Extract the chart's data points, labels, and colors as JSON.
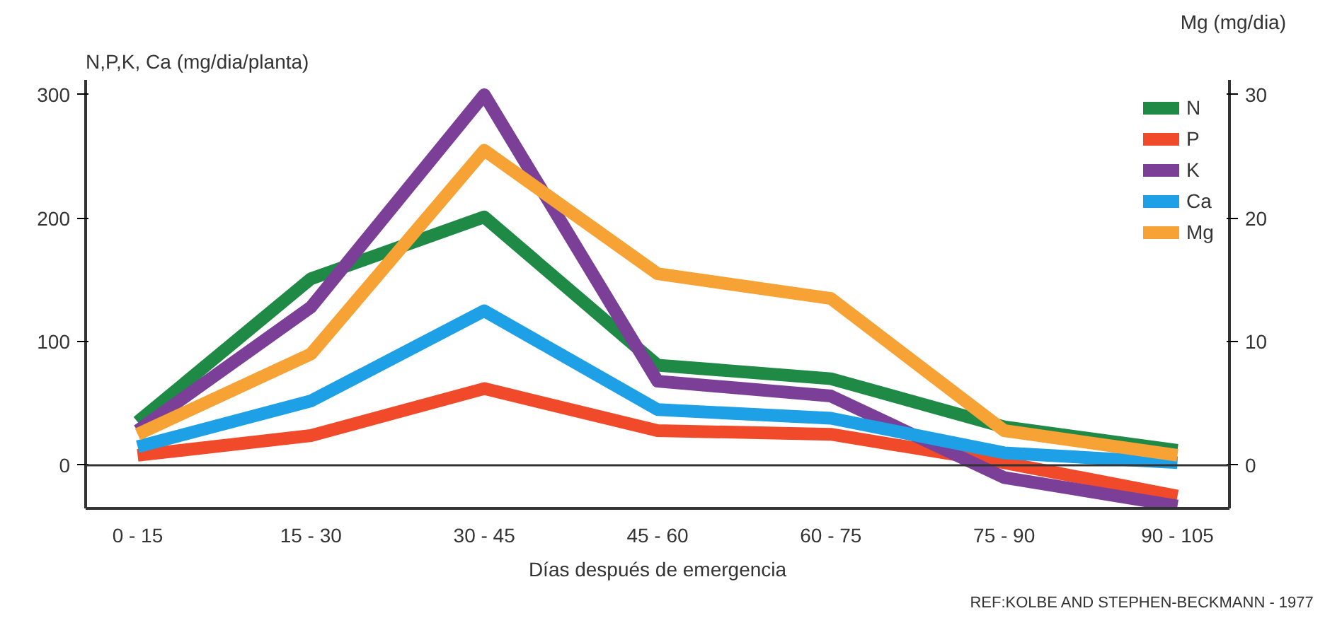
{
  "chart_data": {
    "type": "line",
    "xlabel": "Días después de emergencia",
    "ylabel": "N,P,K, Ca (mg/dia/planta)",
    "y2label": "Mg (mg/dia)",
    "categories": [
      "0 - 15",
      "15 - 30",
      "30 - 45",
      "45 - 60",
      "60 - 75",
      "75 - 90",
      "90 - 105"
    ],
    "series": [
      {
        "name": "N",
        "color": "#1e8a46",
        "values": [
          35,
          151,
          201,
          81,
          70,
          31,
          12
        ]
      },
      {
        "name": "P",
        "color": "#f04a2a",
        "values": [
          8,
          24,
          62,
          28,
          25,
          2,
          -25
        ]
      },
      {
        "name": "K",
        "color": "#7b3f98",
        "values": [
          28,
          128,
          300,
          68,
          56,
          -10,
          -33
        ]
      },
      {
        "name": "Ca",
        "color": "#1ea0e6",
        "values": [
          15,
          52,
          125,
          45,
          38,
          10,
          2
        ]
      },
      {
        "name": "Mg",
        "color": "#f7a234",
        "axis": "y2",
        "values": [
          2.5,
          9,
          25.5,
          15.5,
          13.5,
          2.8,
          0.8
        ]
      }
    ],
    "ylim": [
      -35,
      312
    ],
    "yticks": [
      0,
      100,
      200,
      300
    ],
    "y2lim": [
      -3.5,
      31.2
    ],
    "y2ticks": [
      0,
      10,
      20,
      30
    ],
    "ref_lines": [
      {
        "axis": "y",
        "value": 0,
        "color": "#333333"
      }
    ],
    "annotations": [
      "REF:KOLBE AND STEPHEN-BECKMANN - 1977"
    ],
    "legend": "top right",
    "grid": false,
    "marker": "none",
    "line_style": "solid"
  }
}
